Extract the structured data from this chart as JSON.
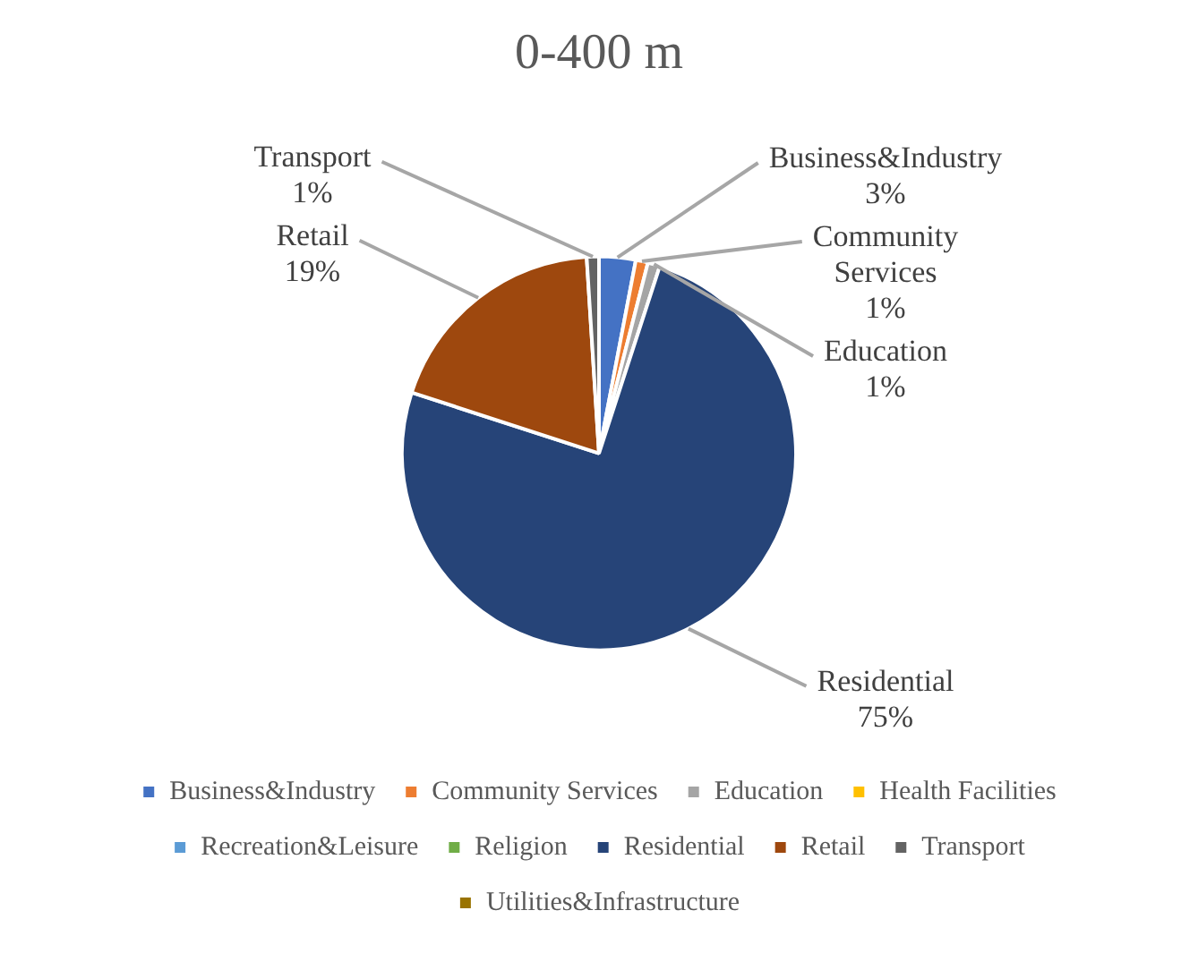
{
  "chart_data": {
    "type": "pie",
    "title": "0-400 m",
    "categories": [
      "Business&Industry",
      "Community Services",
      "Education",
      "Health Facilities",
      "Recreation&Leisure",
      "Religion",
      "Residential",
      "Retail",
      "Transport",
      "Utilities&Infrastructure"
    ],
    "values": [
      3,
      1,
      1,
      0,
      0,
      0,
      75,
      19,
      1,
      0
    ],
    "value_labels": [
      "3%",
      "1%",
      "1%",
      null,
      null,
      null,
      "75%",
      "19%",
      "1%",
      null
    ],
    "colors": [
      "#4472c4",
      "#ed7d31",
      "#a5a5a5",
      "#ffc000",
      "#5b9bd5",
      "#70ad47",
      "#264478",
      "#9e480e",
      "#636363",
      "#997300"
    ],
    "legend": "bottom"
  }
}
